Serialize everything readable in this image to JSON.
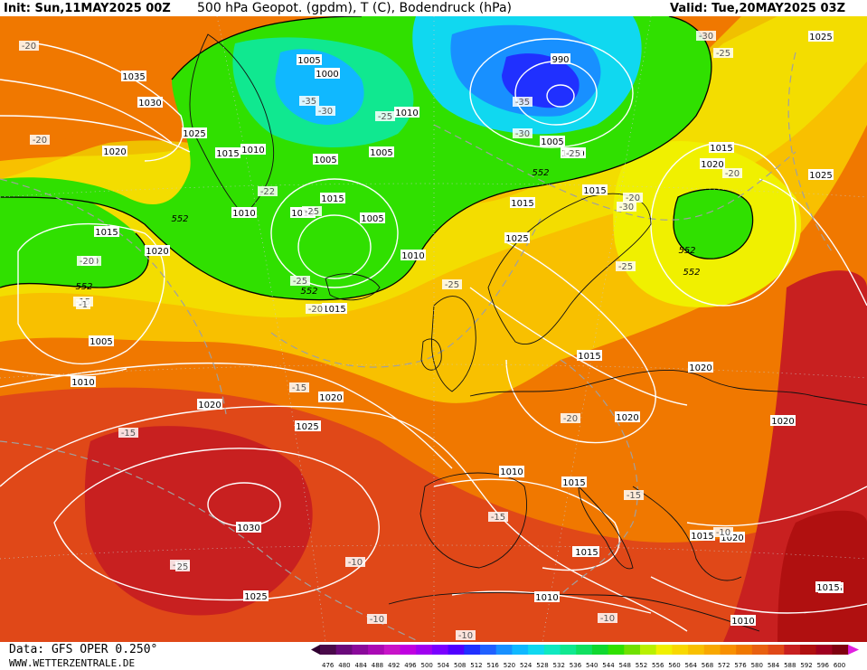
{
  "header": {
    "init": "Init: Sun,11MAY2025 00Z",
    "title": "500 hPa Geopot. (gpdm), T (C), Bodendruck (hPa)",
    "valid": "Valid: Tue,20MAY2025 03Z"
  },
  "footer": {
    "data_source": "Data: GFS OPER 0.250°",
    "website": "WWW.WETTERZENTRALE.DE"
  },
  "colorbar": {
    "ticks": [
      "476",
      "480",
      "484",
      "488",
      "492",
      "496",
      "500",
      "504",
      "508",
      "512",
      "516",
      "520",
      "524",
      "528",
      "532",
      "536",
      "540",
      "544",
      "548",
      "552",
      "556",
      "560",
      "564",
      "568",
      "572",
      "576",
      "580",
      "584",
      "588",
      "592",
      "596",
      "600"
    ],
    "colors": [
      "#4a0a4a",
      "#6a0a7a",
      "#8a0a9a",
      "#aa0ab4",
      "#c814c8",
      "#c000e0",
      "#a000f0",
      "#7a00ff",
      "#5000ff",
      "#2030ff",
      "#2060ff",
      "#1890ff",
      "#10b8ff",
      "#10d8f0",
      "#10e8c0",
      "#10e890",
      "#10e060",
      "#10d830",
      "#30e000",
      "#70e000",
      "#b8f000",
      "#f0f000",
      "#f8d800",
      "#f8c000",
      "#f8a800",
      "#f89000",
      "#f07800",
      "#e86010",
      "#e04818",
      "#c82020",
      "#b01010",
      "#a00020",
      "#800010"
    ]
  },
  "pressure_labels": [
    "1035",
    "1030",
    "1025",
    "1020",
    "1015",
    "1010",
    "1005",
    "1000",
    "990",
    "1025",
    "1015",
    "1020",
    "1015",
    "1015",
    "1010",
    "1010",
    "1005",
    "1005",
    "1010",
    "1005",
    "1015",
    "1010",
    "1005",
    "1010",
    "1015",
    "1005",
    "1010",
    "1020",
    "1025",
    "1020",
    "1020",
    "1025",
    "1030",
    "1025",
    "1020",
    "1015",
    "1015",
    "1010",
    "1015",
    "1020",
    "1015",
    "1010",
    "1025",
    "1020",
    "1020",
    "1015",
    "1010",
    "1020",
    "1015",
    "1015",
    "1010",
    "1025",
    "1015"
  ],
  "temp_labels": [
    "-20",
    "-20",
    "-20",
    "-15",
    "-35",
    "-30",
    "-25",
    "-35",
    "-30",
    "-30",
    "-25",
    "-25",
    "-22",
    "-25",
    "-20",
    "-30",
    "-25",
    "-20",
    "-20",
    "-25",
    "-20",
    "-25",
    "-15",
    "-15",
    "-10",
    "-10",
    "-10",
    "-15",
    "-20",
    "-15",
    "-10",
    "-10",
    "-10",
    "-1",
    "25"
  ],
  "geopot_labels": [
    "552",
    "552",
    "552",
    "552",
    "552",
    "552"
  ]
}
